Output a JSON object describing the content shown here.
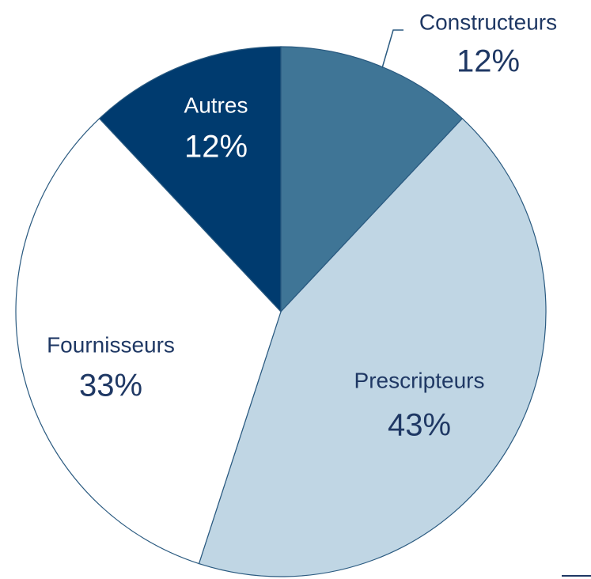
{
  "chart_data": {
    "type": "pie",
    "categories": [
      "Constructeurs",
      "Prescripteurs",
      "Fournisseurs",
      "Autres"
    ],
    "values": [
      12,
      43,
      33,
      12
    ],
    "value_labels": [
      "12%",
      "43%",
      "33%",
      "12%"
    ],
    "colors": [
      "#3f7596",
      "#c0d6e4",
      "#ffffff",
      "#003b6f"
    ],
    "label_colors": [
      "#1f3864",
      "#1f3864",
      "#1f3864",
      "#ffffff"
    ]
  }
}
